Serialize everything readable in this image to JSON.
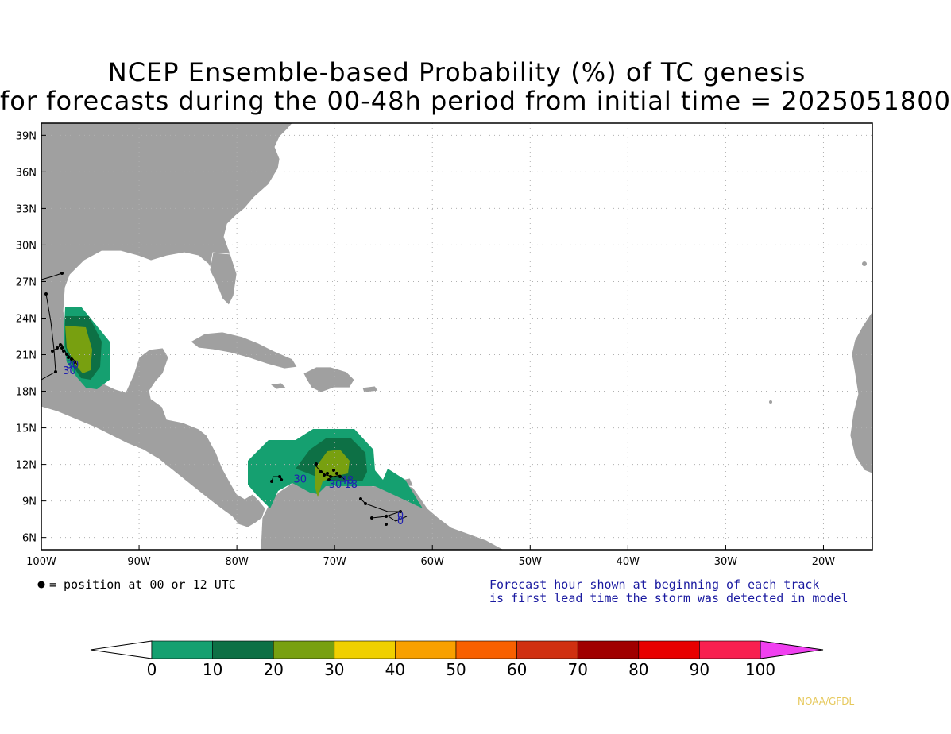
{
  "title": {
    "line1": "NCEP Ensemble-based Probability (%) of TC genesis",
    "line2": "for forecasts during the 00-48h period from initial time = 2025051800"
  },
  "map": {
    "lon_range": [
      -100,
      -15
    ],
    "lat_range": [
      5,
      40
    ],
    "lat_labels": [
      "39N",
      "36N",
      "33N",
      "30N",
      "27N",
      "24N",
      "21N",
      "18N",
      "15N",
      "12N",
      "9N",
      "6N"
    ],
    "lat_values": [
      39,
      36,
      33,
      30,
      27,
      24,
      21,
      18,
      15,
      12,
      9,
      6
    ],
    "lon_labels": [
      "100W",
      "90W",
      "80W",
      "70W",
      "60W",
      "50W",
      "40W",
      "30W",
      "20W"
    ],
    "lon_values": [
      -100,
      -90,
      -80,
      -70,
      -60,
      -50,
      -40,
      -30,
      -20
    ],
    "grid": true,
    "colors": {
      "land": "#a0a0a0",
      "ocean": "#ffffff",
      "border": "#ffffff"
    }
  },
  "storm_labels": [
    {
      "text": "30",
      "lon": -97.5,
      "lat": 19.9
    },
    {
      "text": "30",
      "lon": -97.8,
      "lat": 19.4
    },
    {
      "text": "30",
      "lon": -74.2,
      "lat": 10.5
    },
    {
      "text": "30",
      "lon": -70.6,
      "lat": 10.1
    },
    {
      "text": "48",
      "lon": -69.4,
      "lat": 10.4
    },
    {
      "text": "18",
      "lon": -69.0,
      "lat": 10.1
    },
    {
      "text": "0",
      "lon": -63.6,
      "lat": 7.5
    },
    {
      "text": "0",
      "lon": -63.6,
      "lat": 7.1
    }
  ],
  "legend_note": "● = position at 00 or 12 UTC",
  "forecast_note": {
    "line1": "Forecast hour shown at beginning of each track",
    "line2": "is first lead time the storm was detected in model"
  },
  "colorbar": {
    "labels": [
      "0",
      "10",
      "20",
      "30",
      "40",
      "50",
      "60",
      "70",
      "80",
      "90",
      "100"
    ],
    "colors": [
      "#15a070",
      "#0d7045",
      "#78a010",
      "#f0d000",
      "#f8a000",
      "#f86000",
      "#d03010",
      "#a00000",
      "#e80000",
      "#f82050"
    ],
    "under_color": "#ffffff",
    "over_color": "#f040f0"
  },
  "credit": "NOAA/GFDL"
}
